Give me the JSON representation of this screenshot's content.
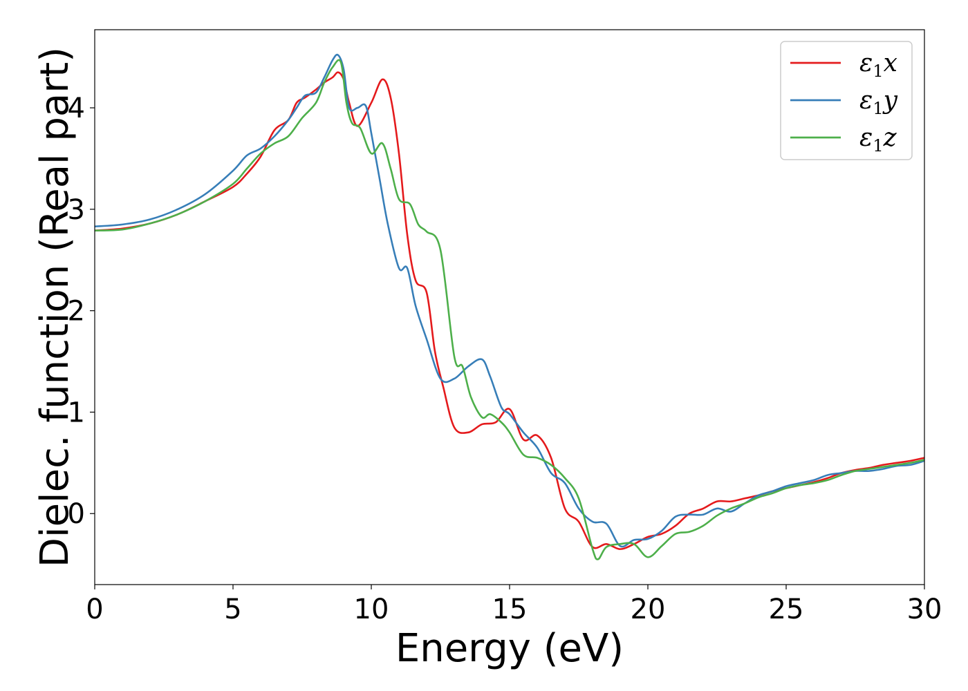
{
  "chart_data": {
    "type": "line",
    "title": "",
    "xlabel": "Energy (eV)",
    "ylabel": "Dielec. function (Real part)",
    "xlim": [
      0,
      30
    ],
    "ylim": [
      -0.7,
      4.77
    ],
    "xticks": [
      0,
      5,
      10,
      15,
      20,
      25,
      30
    ],
    "yticks": [
      0,
      1,
      2,
      3,
      4
    ],
    "grid": false,
    "legend_position": "top-right",
    "series": [
      {
        "name": "ε1x",
        "label_base": "ε",
        "label_sub": "1",
        "label_tail": "x",
        "color": "#e41a1c",
        "x": [
          0,
          1,
          2,
          3,
          4,
          5,
          5.5,
          6,
          6.5,
          7,
          7.3,
          7.6,
          8,
          8.3,
          8.6,
          8.8,
          9,
          9.2,
          9.5,
          10,
          10.4,
          10.7,
          11,
          11.3,
          11.6,
          12,
          12.3,
          12.6,
          13,
          13.5,
          14,
          14.5,
          15,
          15.5,
          16,
          16.5,
          17,
          17.5,
          18,
          18.5,
          19,
          19.5,
          20,
          20.5,
          21,
          21.5,
          22,
          22.5,
          23,
          23.5,
          24,
          24.5,
          25,
          25.5,
          26,
          26.5,
          27,
          27.5,
          28,
          28.5,
          29,
          29.5,
          30
        ],
        "y": [
          2.79,
          2.81,
          2.86,
          2.95,
          3.08,
          3.22,
          3.35,
          3.52,
          3.78,
          3.88,
          4.05,
          4.1,
          4.18,
          4.25,
          4.3,
          4.35,
          4.28,
          4.05,
          3.82,
          4.05,
          4.28,
          4.1,
          3.55,
          2.75,
          2.3,
          2.18,
          1.6,
          1.25,
          0.85,
          0.8,
          0.88,
          0.9,
          1.03,
          0.73,
          0.77,
          0.55,
          0.05,
          -0.08,
          -0.33,
          -0.3,
          -0.35,
          -0.3,
          -0.23,
          -0.2,
          -0.12,
          0.0,
          0.05,
          0.12,
          0.12,
          0.15,
          0.18,
          0.22,
          0.25,
          0.28,
          0.31,
          0.35,
          0.4,
          0.43,
          0.45,
          0.48,
          0.5,
          0.52,
          0.55
        ]
      },
      {
        "name": "ε1y",
        "label_base": "ε",
        "label_sub": "1",
        "label_tail": "y",
        "color": "#377eb8",
        "x": [
          0,
          1,
          2,
          3,
          4,
          5,
          5.5,
          6,
          6.5,
          7,
          7.3,
          7.6,
          8,
          8.3,
          8.6,
          8.8,
          9,
          9.2,
          9.5,
          9.8,
          10,
          10.3,
          10.6,
          11,
          11.3,
          11.6,
          12,
          12.5,
          13,
          13.5,
          14,
          14.3,
          14.7,
          15,
          15.5,
          16,
          16.5,
          17,
          17.5,
          18,
          18.5,
          19,
          19.5,
          20,
          20.5,
          21,
          21.5,
          22,
          22.5,
          23,
          23.5,
          24,
          24.5,
          25,
          25.5,
          26,
          26.5,
          27,
          27.5,
          28,
          28.5,
          29,
          29.5,
          30
        ],
        "y": [
          2.83,
          2.85,
          2.9,
          3.0,
          3.15,
          3.38,
          3.53,
          3.6,
          3.72,
          3.88,
          4.0,
          4.12,
          4.15,
          4.3,
          4.47,
          4.52,
          4.38,
          4.0,
          4.0,
          4.02,
          3.75,
          3.3,
          2.85,
          2.42,
          2.42,
          2.05,
          1.72,
          1.33,
          1.33,
          1.45,
          1.52,
          1.35,
          1.05,
          0.98,
          0.8,
          0.65,
          0.4,
          0.3,
          0.05,
          -0.08,
          -0.1,
          -0.32,
          -0.26,
          -0.25,
          -0.17,
          -0.03,
          -0.01,
          -0.01,
          0.05,
          0.02,
          0.1,
          0.18,
          0.22,
          0.27,
          0.3,
          0.33,
          0.38,
          0.4,
          0.42,
          0.42,
          0.44,
          0.47,
          0.48,
          0.52
        ]
      },
      {
        "name": "ε1z",
        "label_base": "ε",
        "label_sub": "1",
        "label_tail": "z",
        "color": "#4daf4a",
        "x": [
          0,
          1,
          2,
          3,
          4,
          5,
          5.5,
          6,
          6.5,
          7,
          7.5,
          8,
          8.3,
          8.6,
          8.9,
          9.1,
          9.3,
          9.6,
          10,
          10.4,
          10.7,
          11,
          11.4,
          11.7,
          12,
          12.5,
          13,
          13.3,
          13.6,
          14,
          14.3,
          14.7,
          15,
          15.5,
          16,
          16.5,
          17,
          17.5,
          18,
          18.2,
          18.5,
          19,
          19.5,
          20,
          20.5,
          21,
          21.5,
          22,
          22.5,
          23,
          23.5,
          24,
          24.5,
          25,
          25.5,
          26,
          26.5,
          27,
          27.5,
          28,
          28.5,
          29,
          29.5,
          30
        ],
        "y": [
          2.79,
          2.8,
          2.86,
          2.95,
          3.08,
          3.25,
          3.4,
          3.55,
          3.65,
          3.72,
          3.9,
          4.05,
          4.25,
          4.4,
          4.45,
          4.05,
          3.85,
          3.8,
          3.55,
          3.65,
          3.4,
          3.1,
          3.05,
          2.85,
          2.78,
          2.6,
          1.55,
          1.45,
          1.15,
          0.95,
          0.98,
          0.9,
          0.8,
          0.58,
          0.55,
          0.48,
          0.35,
          0.15,
          -0.35,
          -0.45,
          -0.33,
          -0.3,
          -0.3,
          -0.43,
          -0.32,
          -0.2,
          -0.18,
          -0.12,
          -0.02,
          0.05,
          0.1,
          0.16,
          0.2,
          0.25,
          0.28,
          0.3,
          0.33,
          0.38,
          0.42,
          0.44,
          0.46,
          0.48,
          0.5,
          0.53
        ]
      }
    ]
  }
}
